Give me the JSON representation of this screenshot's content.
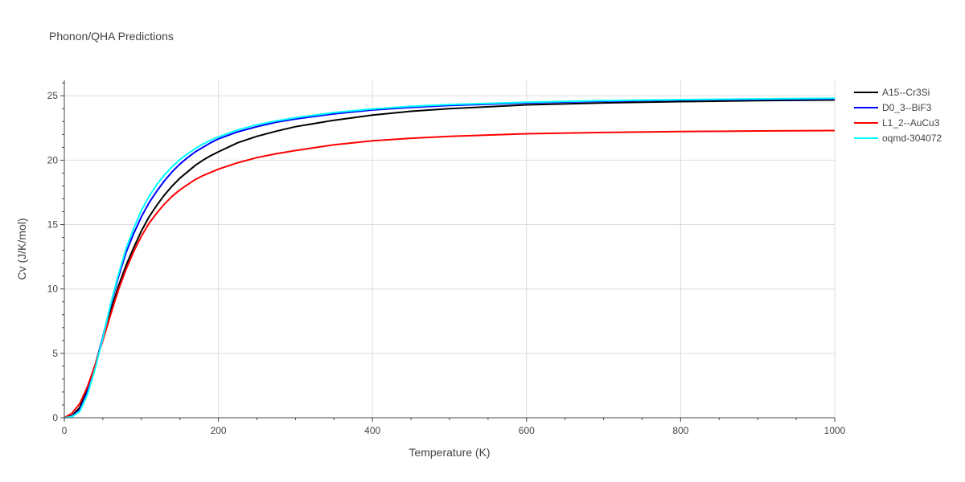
{
  "chart_data": {
    "type": "line",
    "title": "Phonon/QHA Predictions",
    "xlabel": "Temperature (K)",
    "ylabel": "Cv (J/K/mol)",
    "xlim": [
      0,
      1000
    ],
    "ylim": [
      0,
      26.2
    ],
    "xticks": [
      0,
      200,
      400,
      600,
      800,
      1000
    ],
    "xtick_labels": [
      "0",
      "200",
      "400",
      "600",
      "800",
      "1000"
    ],
    "yticks": [
      0,
      5,
      10,
      15,
      20,
      25
    ],
    "ytick_labels": [
      "0",
      "5",
      "10",
      "15",
      "20",
      "25"
    ],
    "grid": true,
    "legend_position": "top-right",
    "series": [
      {
        "name": "A15--Cr3Si",
        "color": "#000000",
        "x": [
          0,
          10,
          20,
          30,
          40,
          50,
          60,
          70,
          80,
          90,
          100,
          110,
          120,
          130,
          140,
          150,
          160,
          170,
          180,
          190,
          200,
          225,
          250,
          275,
          300,
          350,
          400,
          450,
          500,
          600,
          700,
          800,
          900,
          1000
        ],
        "y": [
          0,
          0.15,
          0.8,
          2.2,
          4.1,
          6.2,
          8.3,
          10.2,
          11.8,
          13.2,
          14.5,
          15.6,
          16.5,
          17.3,
          18.0,
          18.6,
          19.1,
          19.6,
          20.0,
          20.35,
          20.65,
          21.35,
          21.85,
          22.25,
          22.6,
          23.1,
          23.5,
          23.8,
          24.0,
          24.3,
          24.45,
          24.55,
          24.62,
          24.67
        ]
      },
      {
        "name": "D0_3--BiF3",
        "color": "#0000ff",
        "x": [
          0,
          10,
          20,
          30,
          40,
          50,
          60,
          70,
          80,
          90,
          100,
          110,
          120,
          130,
          140,
          150,
          160,
          170,
          180,
          190,
          200,
          225,
          250,
          275,
          300,
          350,
          400,
          450,
          500,
          600,
          700,
          800,
          900,
          1000
        ],
        "y": [
          0,
          0.1,
          0.6,
          2.0,
          4.0,
          6.3,
          8.7,
          10.9,
          12.8,
          14.3,
          15.6,
          16.7,
          17.6,
          18.4,
          19.1,
          19.7,
          20.2,
          20.65,
          21.0,
          21.35,
          21.65,
          22.2,
          22.6,
          22.95,
          23.2,
          23.6,
          23.9,
          24.1,
          24.25,
          24.45,
          24.58,
          24.67,
          24.72,
          24.76
        ]
      },
      {
        "name": "L1_2--AuCu3",
        "color": "#ff0000",
        "x": [
          0,
          10,
          20,
          30,
          40,
          50,
          60,
          70,
          80,
          90,
          100,
          110,
          120,
          130,
          140,
          150,
          160,
          170,
          180,
          190,
          200,
          225,
          250,
          275,
          300,
          350,
          400,
          450,
          500,
          600,
          700,
          800,
          900,
          1000
        ],
        "y": [
          0,
          0.35,
          1.1,
          2.4,
          4.1,
          6.0,
          8.0,
          9.9,
          11.5,
          12.9,
          14.1,
          15.1,
          15.9,
          16.6,
          17.2,
          17.7,
          18.1,
          18.5,
          18.8,
          19.05,
          19.3,
          19.8,
          20.2,
          20.5,
          20.75,
          21.2,
          21.5,
          21.7,
          21.85,
          22.05,
          22.15,
          22.22,
          22.27,
          22.3
        ]
      },
      {
        "name": "oqmd-304072",
        "color": "#00ffff",
        "x": [
          0,
          10,
          20,
          30,
          40,
          50,
          60,
          70,
          80,
          90,
          100,
          110,
          120,
          130,
          140,
          150,
          160,
          170,
          180,
          190,
          200,
          225,
          250,
          275,
          300,
          350,
          400,
          450,
          500,
          600,
          700,
          800,
          900,
          1000
        ],
        "y": [
          0,
          0.08,
          0.5,
          1.8,
          3.8,
          6.2,
          8.8,
          11.1,
          13.1,
          14.7,
          16.1,
          17.2,
          18.1,
          18.85,
          19.5,
          20.05,
          20.5,
          20.9,
          21.25,
          21.55,
          21.8,
          22.35,
          22.75,
          23.05,
          23.3,
          23.7,
          23.98,
          24.18,
          24.32,
          24.5,
          24.62,
          24.7,
          24.76,
          24.8
        ]
      }
    ]
  }
}
